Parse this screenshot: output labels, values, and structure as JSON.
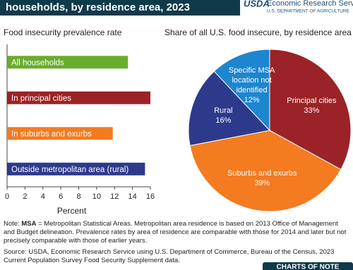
{
  "header": {
    "title": "households, by residence area, 2023",
    "logo": "USDA",
    "org": "Economic Research Service",
    "dept": "U.S. DEPARTMENT OF AGRICULTURE"
  },
  "chart_data": [
    {
      "type": "bar",
      "title": "Food insecurity prevalence rate",
      "categories": [
        "All households",
        "In principal cities",
        "In suburbs and exurbs",
        "Outside metropolitan area (rural)"
      ],
      "values": [
        13.5,
        16.0,
        11.8,
        15.4
      ],
      "colors": [
        "#6aac2e",
        "#9b2226",
        "#f47b20",
        "#2d3a8c"
      ],
      "xlim": [
        0,
        16
      ],
      "xticks": [
        0,
        2,
        4,
        6,
        8,
        10,
        12,
        14,
        16
      ],
      "xlabel": "Percent"
    },
    {
      "type": "pie",
      "title": "Share of all U.S. food insecure, by residence area",
      "categories": [
        "Principal cities",
        "Suburbs and exurbs",
        "Rural",
        "Specific MSA location not identified"
      ],
      "values": [
        33,
        39,
        16,
        12
      ],
      "value_labels": [
        "33%",
        "39%",
        "16%",
        "12%"
      ],
      "colors": [
        "#9b2226",
        "#f47b20",
        "#2d3a8c",
        "#1d86cf"
      ]
    }
  ],
  "footer": {
    "note_prefix": "Note:",
    "note_term": "MSA",
    "note_text": "= Metropolitan Statistical Areas. Metropolitan area residence is based on 2013 Office of Management and Budget delineation. Prevalence rates by area of residence are comparable with those for 2014 and later but not precisely comparable with those of earlier years.",
    "source": "Source: USDA, Economic Research Service using U.S. Department of Commerce, Bureau of the Census, 2023 Current Population Survey Food Security Supplement data.",
    "badge": "CHARTS OF NOTE"
  }
}
